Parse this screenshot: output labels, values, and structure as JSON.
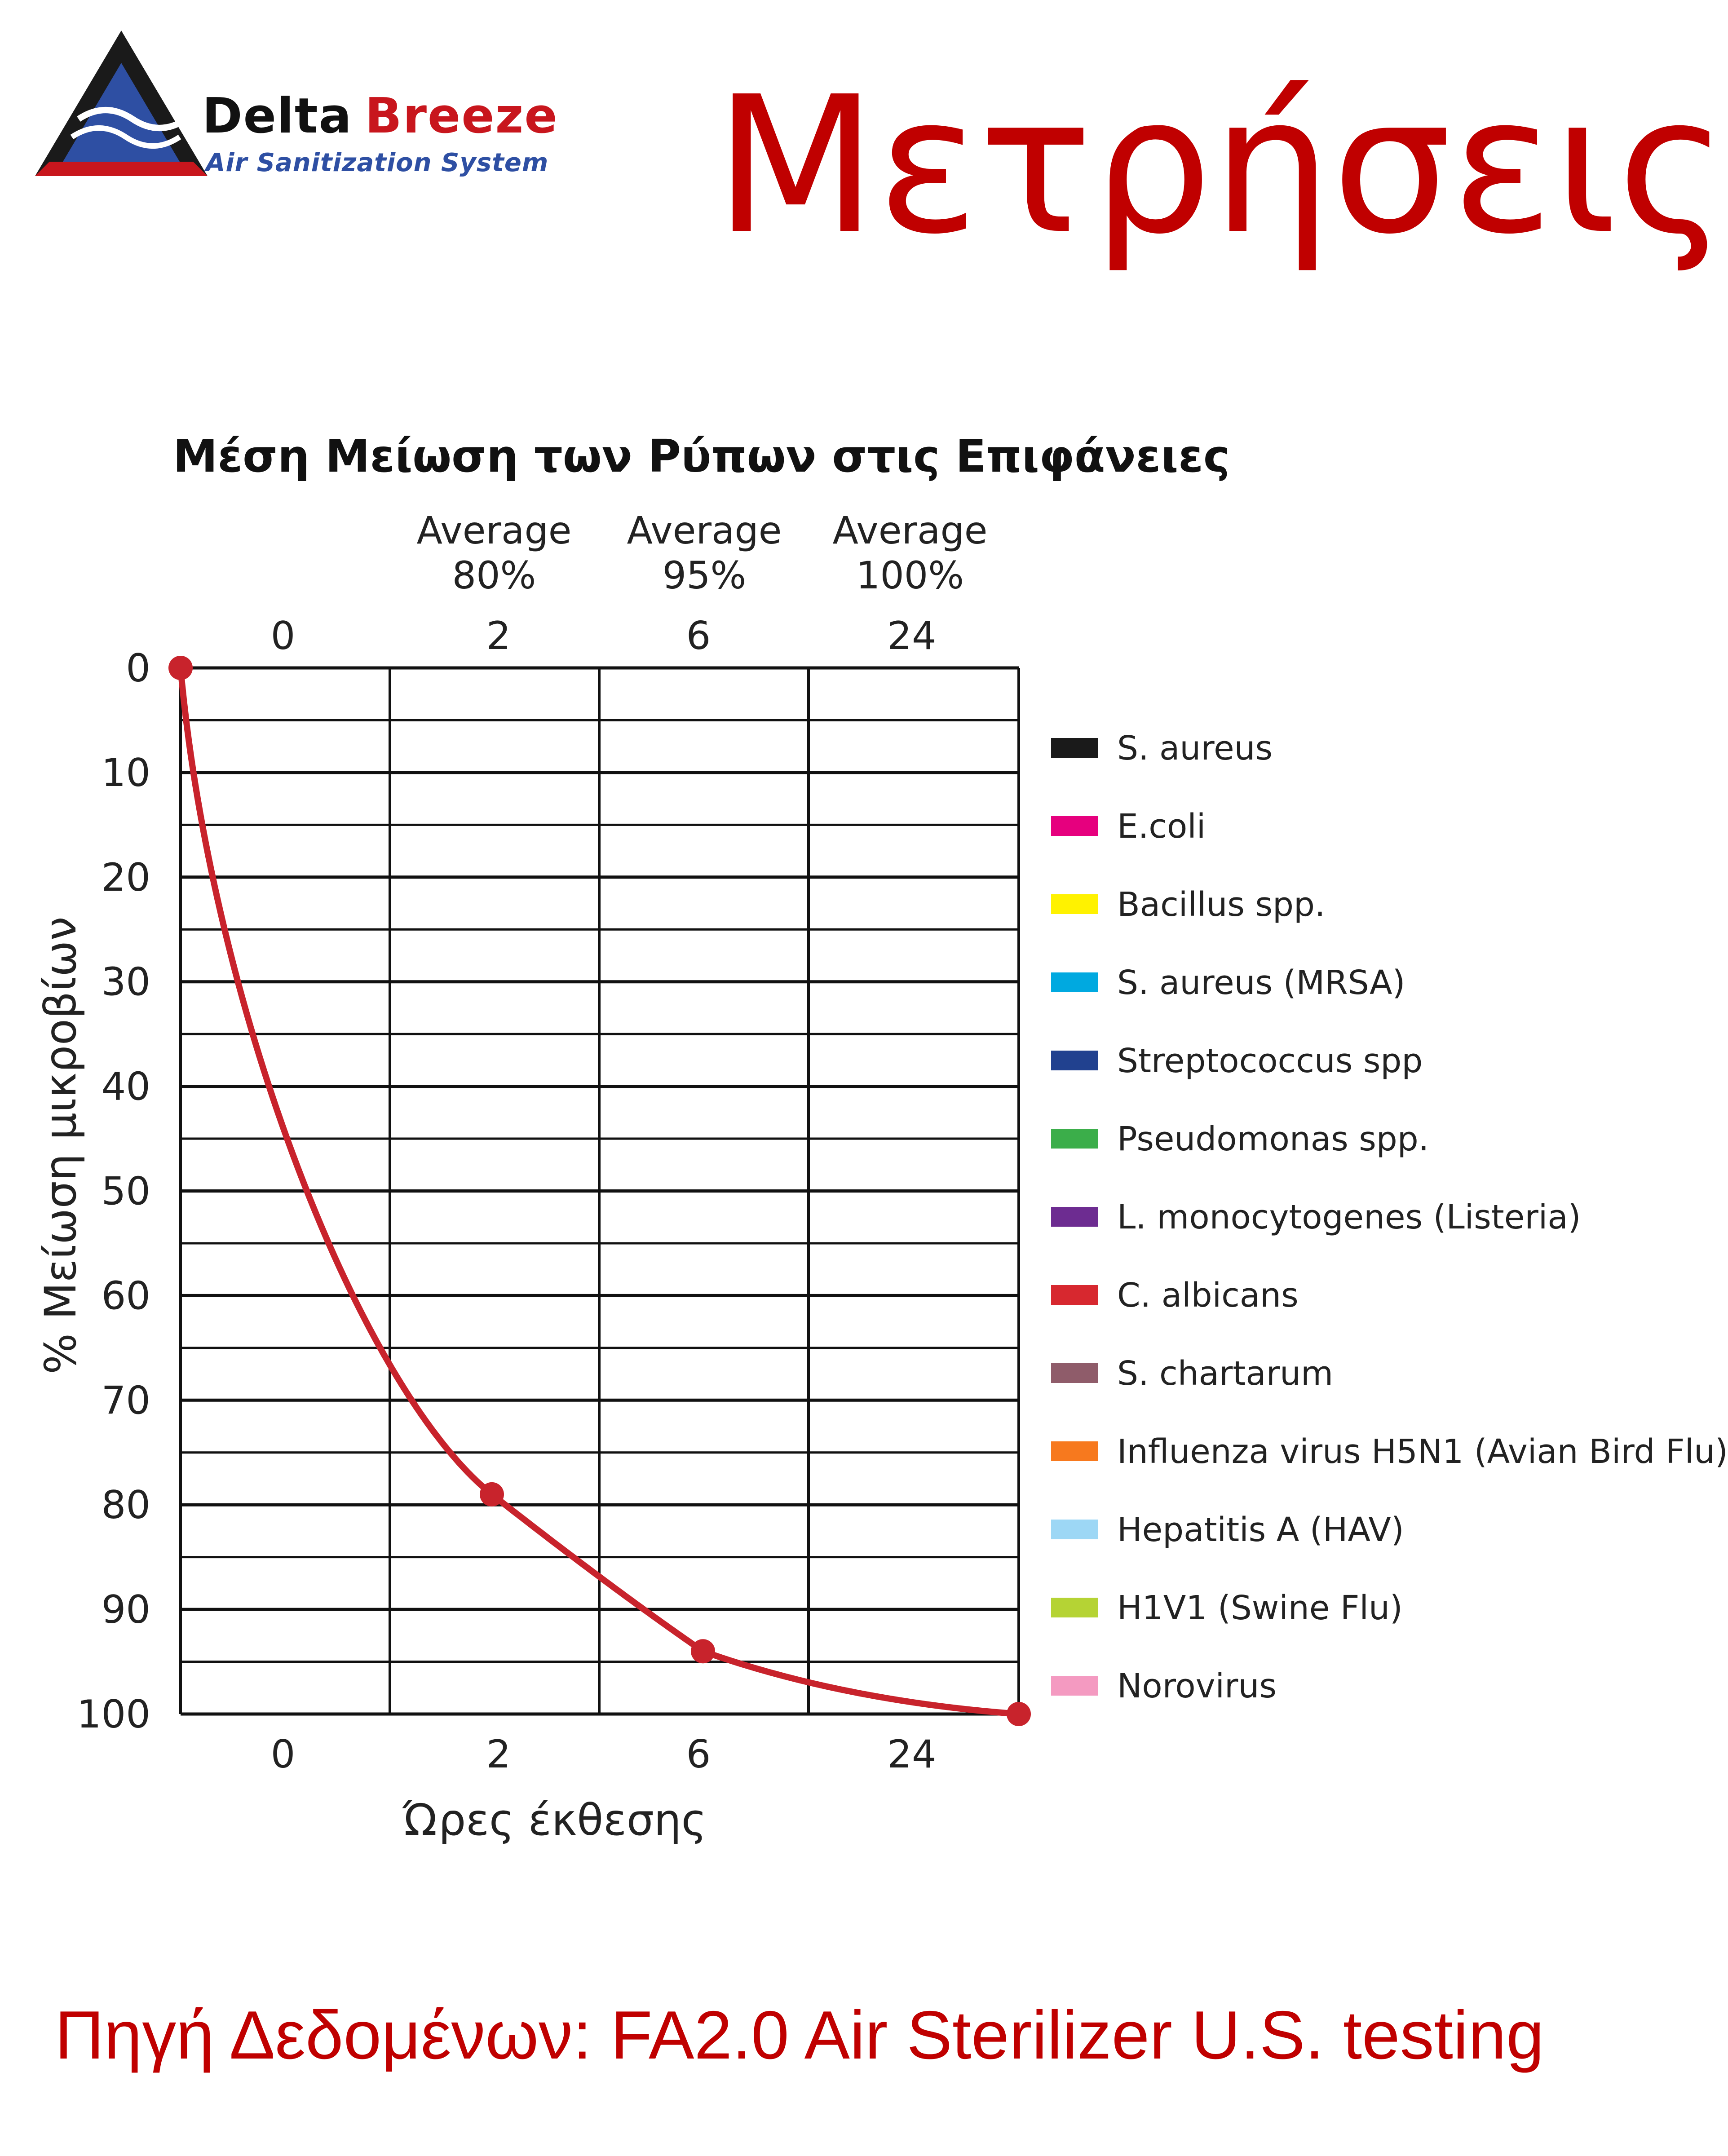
{
  "header": {
    "brand_word1": "Delta",
    "brand_word2": "Breeze",
    "tagline": "Air Sanitization System",
    "page_title": "Μετρήσεις"
  },
  "colors": {
    "brand_red": "#c00000",
    "brand_blue": "#2e4fa3",
    "curve": "#c8232c"
  },
  "chart_data": {
    "type": "line",
    "title": "Μέση Μείωση των Ρύπων στις Επιφάνειες",
    "xlabel": "Ώρες έκθεσης",
    "ylabel": "% Μείωση μικροβίων",
    "ylim": [
      0,
      100
    ],
    "y_inverted": true,
    "y_ticks": [
      "0",
      "10",
      "20",
      "30",
      "40",
      "50",
      "60",
      "70",
      "80",
      "90",
      "100"
    ],
    "x_ticks": [
      "0",
      "2",
      "6",
      "24"
    ],
    "top_x_ticks": [
      "0",
      "2",
      "6",
      "24"
    ],
    "averages": [
      {
        "label": "Average",
        "value": "80%"
      },
      {
        "label": "Average",
        "value": "95%"
      },
      {
        "label": "Average",
        "value": "100%"
      }
    ],
    "grid": true,
    "series": [
      {
        "name": "Μέση μείωση",
        "color": "#c8232c",
        "x": [
          0,
          2,
          6,
          24
        ],
        "values": [
          0,
          79,
          94,
          100
        ]
      }
    ],
    "legend_position": "right",
    "legend": [
      {
        "label": "S. aureus",
        "color": "#1a1a1a"
      },
      {
        "label": "E.coli",
        "color": "#e6007e"
      },
      {
        "label": "Bacillus spp.",
        "color": "#fff200"
      },
      {
        "label": "S. aureus (MRSA)",
        "color": "#00a9e0"
      },
      {
        "label": "Streptococcus spp",
        "color": "#21418f"
      },
      {
        "label": "Pseudomonas spp.",
        "color": "#3bae4a"
      },
      {
        "label": "L. monocytogenes (Listeria)",
        "color": "#6d2c91"
      },
      {
        "label": "C. albicans",
        "color": "#d7282f"
      },
      {
        "label": "S. chartarum",
        "color": "#8f5c6a"
      },
      {
        "label": "Influenza virus H5N1 (Avian Bird Flu)",
        "color": "#f7791e"
      },
      {
        "label": "Hepatitis A (HAV)",
        "color": "#9dd7f5"
      },
      {
        "label": "H1V1 (Swine Flu)",
        "color": "#b5d334"
      },
      {
        "label": "Norovirus",
        "color": "#f49ac1"
      }
    ]
  },
  "footer": {
    "source": "Πηγή Δεδομένων: FA2.0 Air Sterilizer U.S. testing"
  }
}
